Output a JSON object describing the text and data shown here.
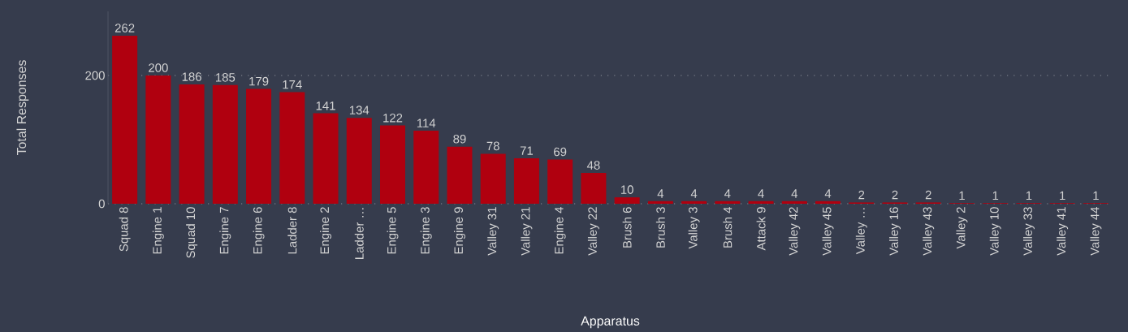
{
  "chart_data": {
    "type": "bar",
    "xlabel": "Apparatus",
    "ylabel": "Total Responses",
    "categories": [
      "Squad 8",
      "Engine 1",
      "Squad 10",
      "Engine 7",
      "Engine 6",
      "Ladder 8",
      "Engine 2",
      "Ladder …",
      "Engine 5",
      "Engine 3",
      "Engine 9",
      "Valley 31",
      "Valley 21",
      "Engine 4",
      "Valley 22",
      "Brush 6",
      "Brush 3",
      "Valley 3",
      "Brush 4",
      "Attack 9",
      "Valley 42",
      "Valley 45",
      "Valley …",
      "Valley 16",
      "Valley 43",
      "Valley 2",
      "Valley 10",
      "Valley 33",
      "Valley 41",
      "Valley 44"
    ],
    "values": [
      262,
      200,
      186,
      185,
      179,
      174,
      141,
      134,
      122,
      114,
      89,
      78,
      71,
      69,
      48,
      10,
      4,
      4,
      4,
      4,
      4,
      4,
      2,
      2,
      2,
      1,
      1,
      1,
      1,
      1
    ],
    "color": "#b0000f",
    "ylim": [
      0,
      300
    ],
    "yticks": [
      0,
      200
    ],
    "grid": "y",
    "data_labels": true
  }
}
